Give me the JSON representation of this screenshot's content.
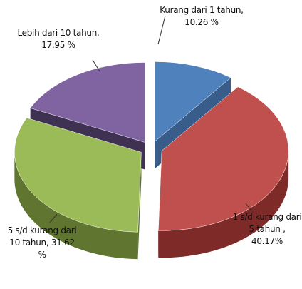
{
  "chart_data": {
    "type": "pie3d",
    "value_labels": [
      "Kurang dari 1 tahun, 10.26 %",
      "1 s/d kurang dari 5 tahun , 40.17%",
      "5 s/d kurang dari 10 tahun, 31.62 %",
      "Lebih dari 10 tahun, 17.95 %"
    ],
    "values": [
      10.26,
      40.17,
      31.62,
      17.95
    ],
    "colors": [
      "#4f81bd",
      "#c0504d",
      "#9bbb59",
      "#8064a2"
    ],
    "side_colors": [
      "#385d8a",
      "#7d2a28",
      "#5f7530",
      "#3f3151"
    ]
  }
}
